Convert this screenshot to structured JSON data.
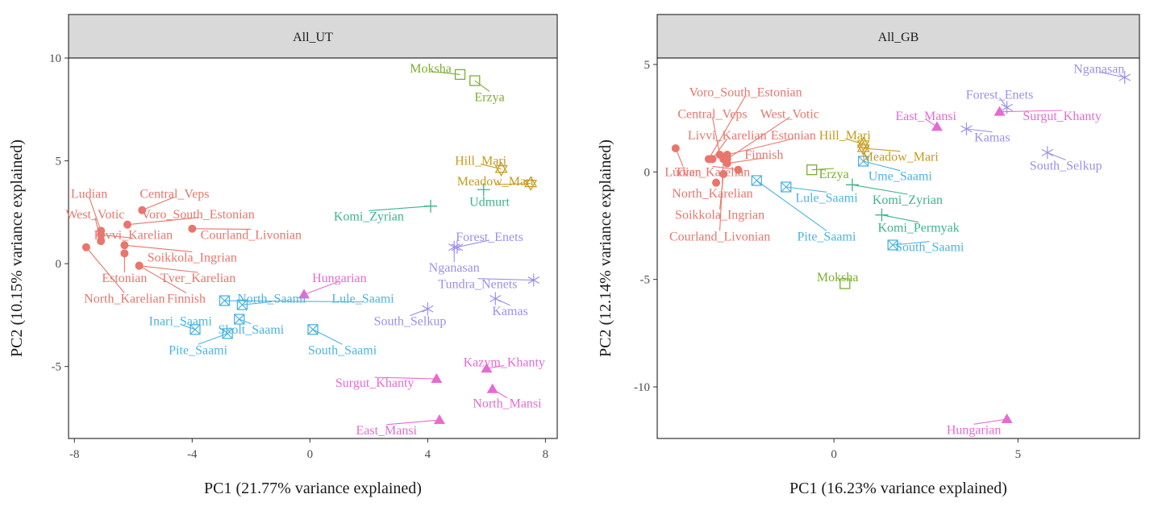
{
  "colors": {
    "Finnic": "#E8766C",
    "Saami": "#4CB4E0",
    "Mordvin": "#7CAE2E",
    "Mari": "#C49A1D",
    "Permic": "#3DB489",
    "Samoyedic": "#9E8FEA",
    "Ugric": "#E66BD0"
  },
  "chart_data": [
    {
      "type": "scatter",
      "panel_title": "All_UT",
      "xlabel": "PC1 (21.77% variance explained)",
      "ylabel": "PC2 (10.15% variance explained)",
      "xlim": [
        -8.2,
        8.4
      ],
      "ylim": [
        -8.5,
        10.0
      ],
      "xticks": [
        -8,
        -4,
        0,
        4,
        8
      ],
      "yticks": [
        -5,
        0,
        5,
        10
      ],
      "grid": false,
      "points": [
        {
          "label": "Ludian",
          "group": "Finnic",
          "x": -7.1,
          "y": 1.6,
          "lx": -7.5,
          "ly": 3.4
        },
        {
          "label": "Central_Veps",
          "group": "Finnic",
          "x": -5.7,
          "y": 2.6,
          "lx": -4.6,
          "ly": 3.4
        },
        {
          "label": "West_Votic",
          "group": "Finnic",
          "x": -7.1,
          "y": 1.1,
          "lx": -7.3,
          "ly": 2.4
        },
        {
          "label": "Voro_South_Estonian",
          "group": "Finnic",
          "x": -6.2,
          "y": 1.9,
          "lx": -3.8,
          "ly": 2.4
        },
        {
          "label": "Livvi_Karelian",
          "group": "Finnic",
          "x": -7.1,
          "y": 1.4,
          "lx": -6.0,
          "ly": 1.4
        },
        {
          "label": "Courland_Livonian",
          "group": "Finnic",
          "x": -4.0,
          "y": 1.7,
          "lx": -2.0,
          "ly": 1.4
        },
        {
          "label": "Soikkola_Ingrian",
          "group": "Finnic",
          "x": -6.3,
          "y": 0.9,
          "lx": -4.0,
          "ly": 0.3
        },
        {
          "label": "Estonian",
          "group": "Finnic",
          "x": -6.3,
          "y": 0.5,
          "lx": -6.3,
          "ly": -0.7
        },
        {
          "label": "Tver_Karelian",
          "group": "Finnic",
          "x": -5.8,
          "y": -0.1,
          "lx": -3.8,
          "ly": -0.7
        },
        {
          "label": "North_Karelian",
          "group": "Finnic",
          "x": -7.6,
          "y": 0.8,
          "lx": -6.3,
          "ly": -1.7
        },
        {
          "label": "Finnish",
          "group": "Finnic",
          "x": -5.8,
          "y": -0.1,
          "lx": -4.2,
          "ly": -1.7
        },
        {
          "label": "North_Saami",
          "group": "Saami",
          "x": -2.3,
          "y": -2.0,
          "lx": -1.3,
          "ly": -1.7
        },
        {
          "label": "Lule_Saami",
          "group": "Saami",
          "x": -2.9,
          "y": -1.8,
          "lx": 1.8,
          "ly": -1.7
        },
        {
          "label": "Inari_Saami",
          "group": "Saami",
          "x": -3.9,
          "y": -3.2,
          "lx": -4.4,
          "ly": -2.8
        },
        {
          "label": "Skolt_Saami",
          "group": "Saami",
          "x": -2.4,
          "y": -2.7,
          "lx": -2.0,
          "ly": -3.2
        },
        {
          "label": "Pite_Saami",
          "group": "Saami",
          "x": -2.8,
          "y": -3.4,
          "lx": -3.8,
          "ly": -4.2
        },
        {
          "label": "South_Saami",
          "group": "Saami",
          "x": 0.1,
          "y": -3.2,
          "lx": 1.1,
          "ly": -4.2
        },
        {
          "label": "Moksha",
          "group": "Mordvin",
          "x": 5.1,
          "y": 9.2,
          "lx": 4.1,
          "ly": 9.5
        },
        {
          "label": "Erzya",
          "group": "Mordvin",
          "x": 5.6,
          "y": 8.9,
          "lx": 6.1,
          "ly": 8.1
        },
        {
          "label": "Hill_Mari",
          "group": "Mari",
          "x": 6.5,
          "y": 4.6,
          "lx": 5.8,
          "ly": 5.0
        },
        {
          "label": "Meadow_Mari",
          "group": "Mari",
          "x": 7.5,
          "y": 3.9,
          "lx": 6.3,
          "ly": 4.0
        },
        {
          "label": "Udmurt",
          "group": "Permic",
          "x": 5.9,
          "y": 3.6,
          "lx": 6.1,
          "ly": 3.0
        },
        {
          "label": "Komi_Zyrian",
          "group": "Permic",
          "x": 4.1,
          "y": 2.8,
          "lx": 2.0,
          "ly": 2.3
        },
        {
          "label": "Forest_Enets",
          "group": "Samoyedic",
          "x": 5.0,
          "y": 0.8,
          "lx": 6.1,
          "ly": 1.3
        },
        {
          "label": "Nganasan",
          "group": "Samoyedic",
          "x": 4.9,
          "y": 0.8,
          "lx": 4.9,
          "ly": -0.2
        },
        {
          "label": "Tundra_Nenets",
          "group": "Samoyedic",
          "x": 7.6,
          "y": -0.8,
          "lx": 5.7,
          "ly": -1.0
        },
        {
          "label": "Kamas",
          "group": "Samoyedic",
          "x": 6.3,
          "y": -1.7,
          "lx": 6.8,
          "ly": -2.3
        },
        {
          "label": "South_Selkup",
          "group": "Samoyedic",
          "x": 4.0,
          "y": -2.2,
          "lx": 3.4,
          "ly": -2.8
        },
        {
          "label": "Hungarian",
          "group": "Ugric",
          "x": -0.2,
          "y": -1.5,
          "lx": 1.0,
          "ly": -0.7
        },
        {
          "label": "Kazym_Khanty",
          "group": "Ugric",
          "x": 6.0,
          "y": -5.1,
          "lx": 6.6,
          "ly": -4.8
        },
        {
          "label": "Surgut_Khanty",
          "group": "Ugric",
          "x": 4.3,
          "y": -5.6,
          "lx": 2.2,
          "ly": -5.8
        },
        {
          "label": "North_Mansi",
          "group": "Ugric",
          "x": 6.2,
          "y": -6.1,
          "lx": 6.7,
          "ly": -6.8
        },
        {
          "label": "East_Mansi",
          "group": "Ugric",
          "x": 4.4,
          "y": -7.6,
          "lx": 2.6,
          "ly": -8.1
        }
      ]
    },
    {
      "type": "scatter",
      "panel_title": "All_GB",
      "xlabel": "PC1 (16.23% variance explained)",
      "ylabel": "PC2 (12.14% variance explained)",
      "xlim": [
        -4.8,
        8.3
      ],
      "ylim": [
        -12.4,
        5.3
      ],
      "xticks": [
        0,
        5
      ],
      "yticks": [
        -10,
        -5,
        0,
        5
      ],
      "grid": false,
      "points": [
        {
          "label": "Voro_South_Estonian",
          "group": "Finnic",
          "x": -3.4,
          "y": 0.6,
          "lx": -2.4,
          "ly": 3.7
        },
        {
          "label": "Central_Veps",
          "group": "Finnic",
          "x": -3.1,
          "y": 0.8,
          "lx": -3.3,
          "ly": 2.7
        },
        {
          "label": "West_Votic",
          "group": "Finnic",
          "x": -2.9,
          "y": 0.6,
          "lx": -1.2,
          "ly": 2.7
        },
        {
          "label": "Livvi_Karelian",
          "group": "Finnic",
          "x": -3.3,
          "y": 0.6,
          "lx": -2.9,
          "ly": 1.7
        },
        {
          "label": "Estonian",
          "group": "Finnic",
          "x": -2.9,
          "y": 0.8,
          "lx": -1.1,
          "ly": 1.7
        },
        {
          "label": "Finnish",
          "group": "Finnic",
          "x": -2.9,
          "y": 0.4,
          "lx": -1.9,
          "ly": 0.8
        },
        {
          "label": "Ludian",
          "group": "Finnic",
          "x": -4.3,
          "y": 1.1,
          "lx": -4.1,
          "ly": 0.0
        },
        {
          "label": "Tver_Karelian",
          "group": "Finnic",
          "x": -2.6,
          "y": 0.1,
          "lx": -3.3,
          "ly": 0.0
        },
        {
          "label": "North_Karelian",
          "group": "Finnic",
          "x": -3.2,
          "y": -0.5,
          "lx": -3.3,
          "ly": -1.0
        },
        {
          "label": "Soikkola_Ingrian",
          "group": "Finnic",
          "x": -3.0,
          "y": -0.1,
          "lx": -3.1,
          "ly": -2.0
        },
        {
          "label": "Courland_Livonian",
          "group": "Finnic",
          "x": -3.0,
          "y": 0.6,
          "lx": -3.1,
          "ly": -3.0
        },
        {
          "label": "Ume_Saami",
          "group": "Saami",
          "x": 0.8,
          "y": 0.5,
          "lx": 1.8,
          "ly": -0.2
        },
        {
          "label": "Lule_Saami",
          "group": "Saami",
          "x": -1.3,
          "y": -0.7,
          "lx": -0.2,
          "ly": -1.2
        },
        {
          "label": "Pite_Saami",
          "group": "Saami",
          "x": -2.1,
          "y": -0.4,
          "lx": -0.2,
          "ly": -3.0
        },
        {
          "label": "South_Saami",
          "group": "Saami",
          "x": 1.6,
          "y": -3.4,
          "lx": 2.6,
          "ly": -3.5
        },
        {
          "label": "Erzya",
          "group": "Mordvin",
          "x": -0.6,
          "y": 0.1,
          "lx": 0.0,
          "ly": -0.1
        },
        {
          "label": "Moksha",
          "group": "Mordvin",
          "x": 0.3,
          "y": -5.2,
          "lx": 0.1,
          "ly": -4.9
        },
        {
          "label": "Hill_Mari",
          "group": "Mari",
          "x": 0.8,
          "y": 1.3,
          "lx": 0.3,
          "ly": 1.7
        },
        {
          "label": "Meadow_Mari",
          "group": "Mari",
          "x": 0.8,
          "y": 1.1,
          "lx": 1.8,
          "ly": 0.7
        },
        {
          "label": "Komi_Zyrian",
          "group": "Permic",
          "x": 0.5,
          "y": -0.6,
          "lx": 2.0,
          "ly": -1.3
        },
        {
          "label": "Komi_Permyak",
          "group": "Permic",
          "x": 1.3,
          "y": -2.0,
          "lx": 2.3,
          "ly": -2.6
        },
        {
          "label": "Nganasan",
          "group": "Samoyedic",
          "x": 7.9,
          "y": 4.4,
          "lx": 7.2,
          "ly": 4.8
        },
        {
          "label": "Forest_Enets",
          "group": "Samoyedic",
          "x": 4.7,
          "y": 3.0,
          "lx": 4.5,
          "ly": 3.6
        },
        {
          "label": "Surgut_Khanty",
          "group": "Ugric",
          "x": 4.5,
          "y": 2.8,
          "lx": 6.2,
          "ly": 2.6
        },
        {
          "label": "Kamas",
          "group": "Samoyedic",
          "x": 3.6,
          "y": 2.0,
          "lx": 4.3,
          "ly": 1.6
        },
        {
          "label": "South_Selkup",
          "group": "Samoyedic",
          "x": 5.8,
          "y": 0.9,
          "lx": 6.3,
          "ly": 0.3
        },
        {
          "label": "East_Mansi",
          "group": "Ugric",
          "x": 2.8,
          "y": 2.1,
          "lx": 2.5,
          "ly": 2.6
        },
        {
          "label": "Hungarian",
          "group": "Ugric",
          "x": 4.7,
          "y": -11.5,
          "lx": 3.8,
          "ly": -12.0
        }
      ]
    }
  ]
}
